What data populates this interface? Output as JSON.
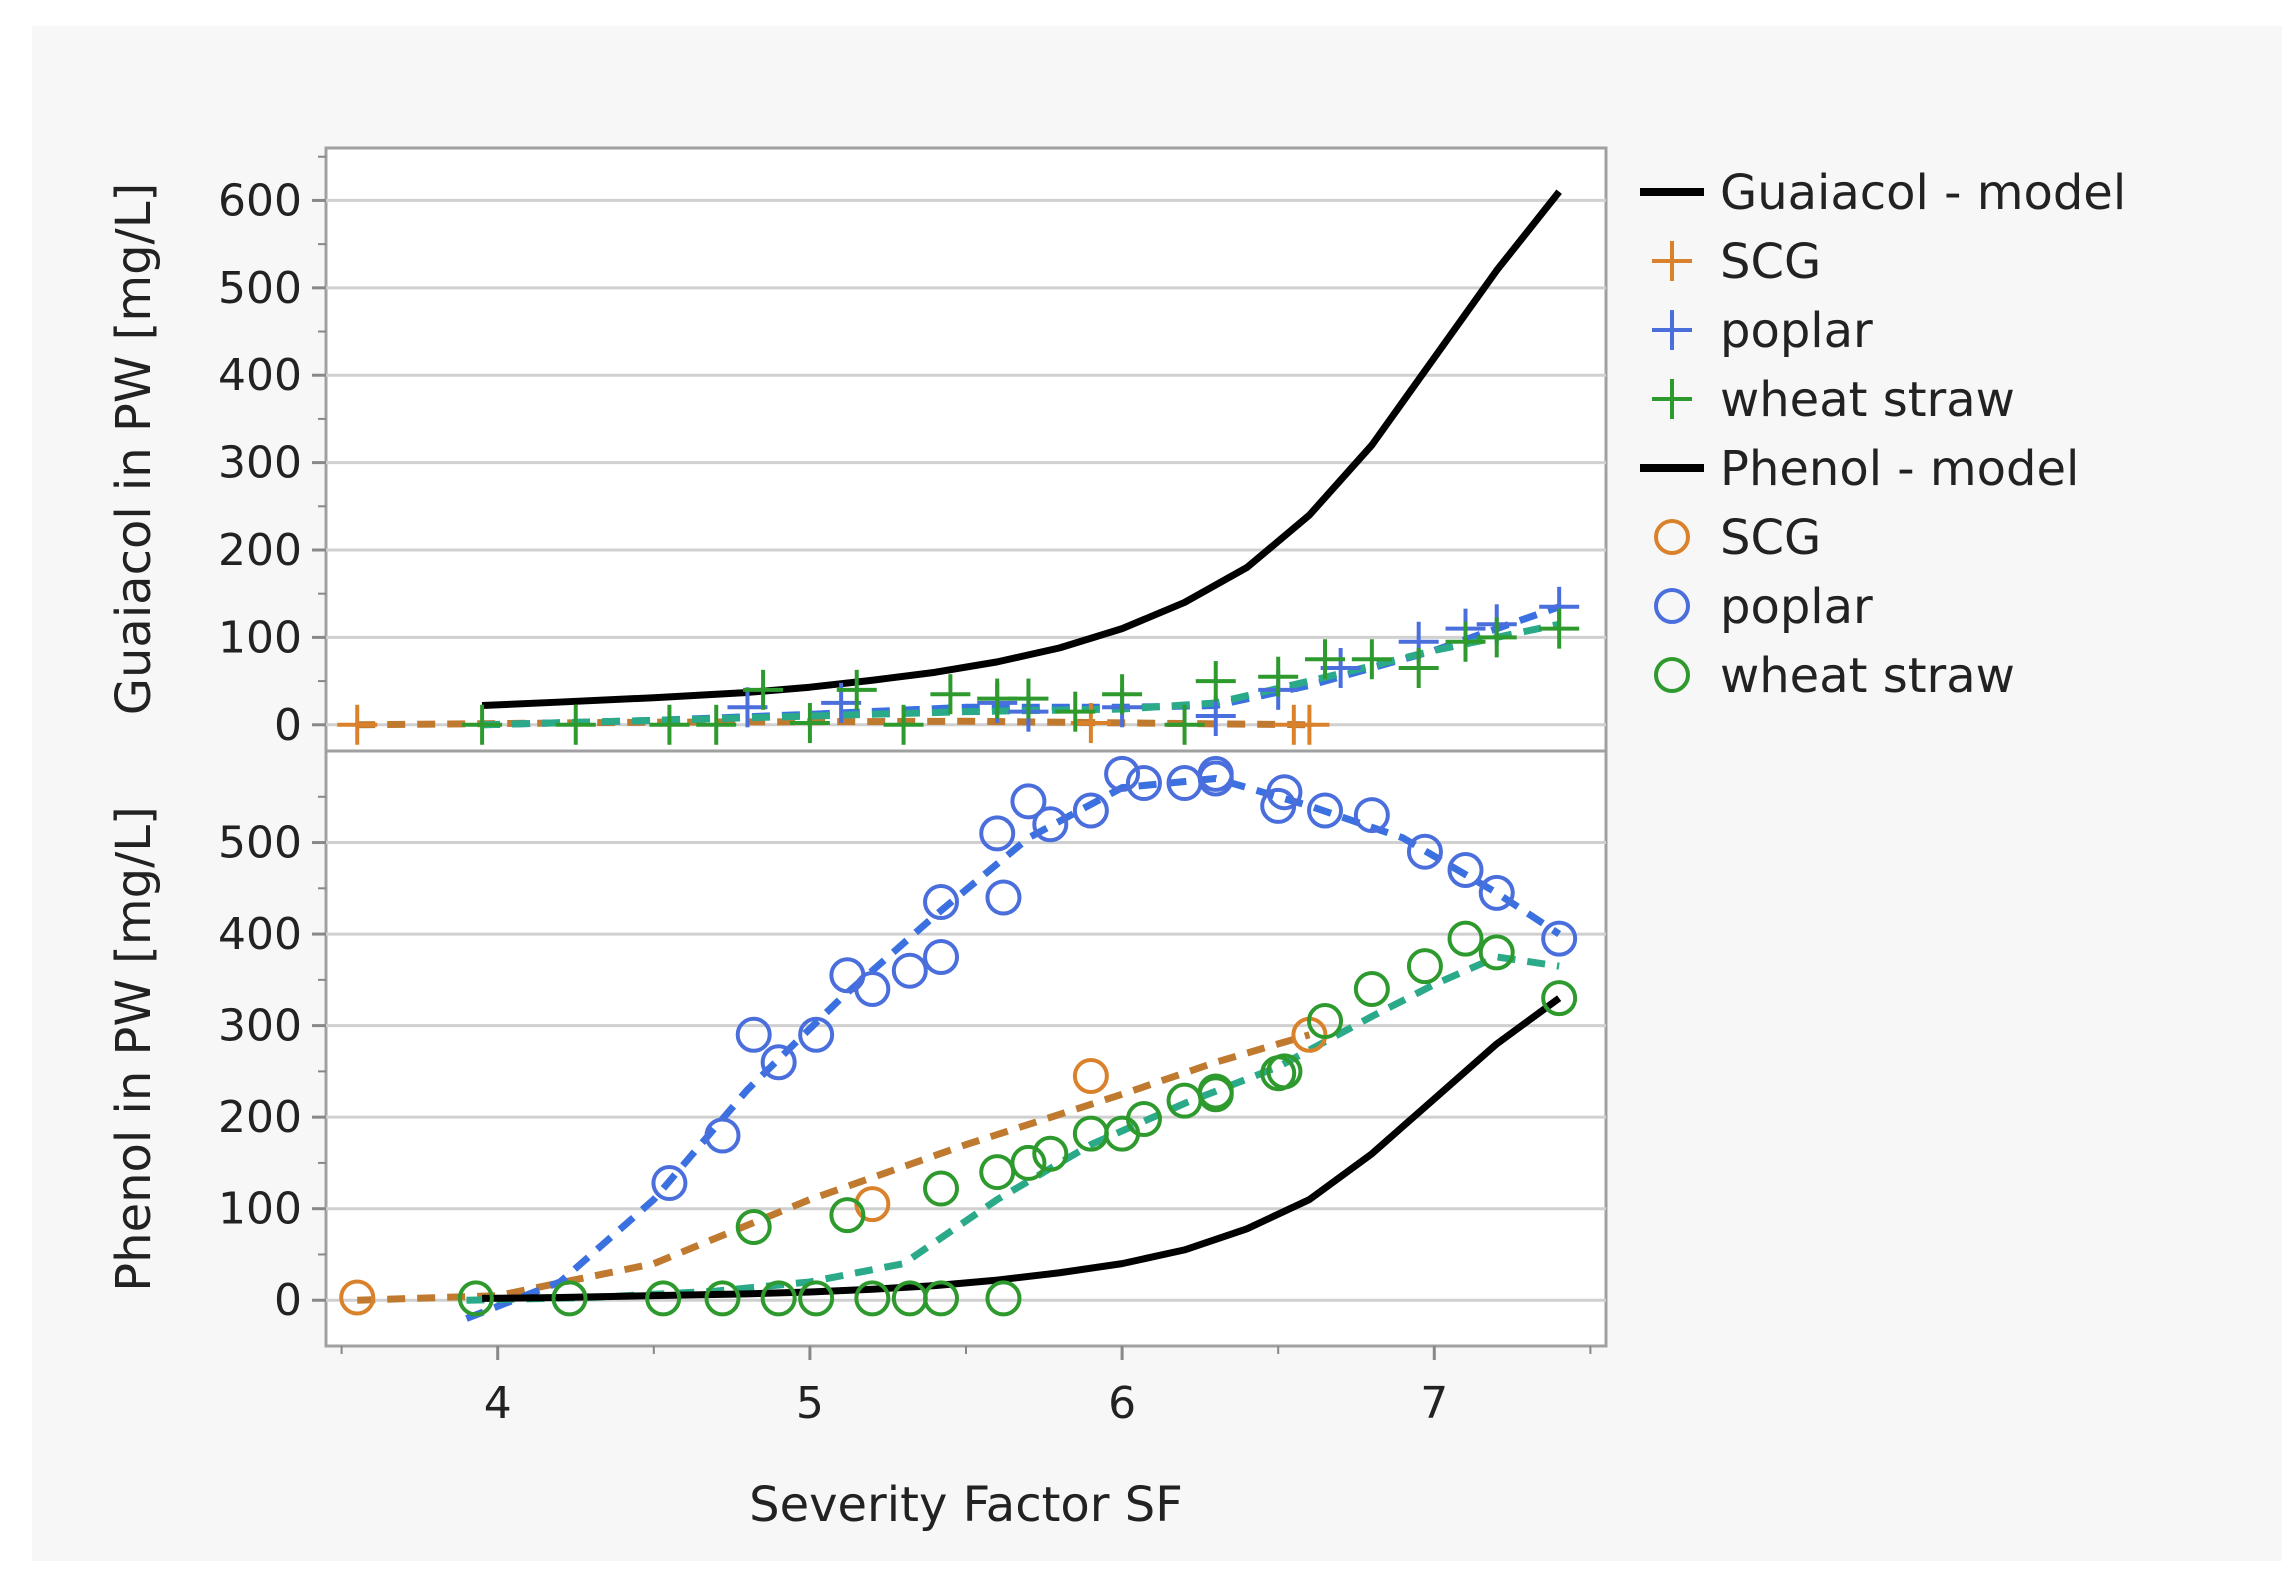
{
  "chart_data": [
    {
      "type": "line",
      "panel": "top",
      "ylabel": "Guaiacol in PW [mg/L]",
      "xlabel": "Severity Factor SF",
      "xlim": [
        3.45,
        7.55
      ],
      "ylim": [
        -30,
        660
      ],
      "x_ticks": [
        4,
        5,
        6,
        7
      ],
      "y_ticks": [
        0,
        100,
        200,
        300,
        400,
        500,
        600
      ],
      "grid": true,
      "series": [
        {
          "name": "Guaiacol - model",
          "style": "solid",
          "color": "#000000",
          "x": [
            3.95,
            4.2,
            4.5,
            4.8,
            5.0,
            5.2,
            5.4,
            5.6,
            5.8,
            6.0,
            6.2,
            6.4,
            6.6,
            6.8,
            7.0,
            7.2,
            7.4
          ],
          "y": [
            22,
            26,
            31,
            37,
            43,
            51,
            60,
            72,
            88,
            110,
            140,
            180,
            240,
            320,
            420,
            520,
            610
          ]
        },
        {
          "name": "SCG",
          "marker": "+",
          "color": "#d9822b",
          "x": [
            3.55,
            5.9,
            6.55,
            6.6
          ],
          "y": [
            0,
            2,
            0,
            0
          ],
          "fit_x": [
            3.55,
            4.5,
            5.5,
            6.6
          ],
          "fit_y": [
            0,
            3,
            4,
            0
          ]
        },
        {
          "name": "poplar",
          "marker": "+",
          "color": "#4a6fdc",
          "x": [
            4.8,
            5.1,
            5.6,
            5.7,
            6.0,
            6.3,
            6.5,
            6.7,
            6.95,
            7.1,
            7.2,
            7.4
          ],
          "y": [
            20,
            25,
            25,
            15,
            20,
            10,
            40,
            65,
            95,
            110,
            115,
            135
          ],
          "fit_x": [
            3.95,
            4.5,
            5.0,
            5.5,
            6.0,
            6.3,
            6.6,
            7.0,
            7.4
          ],
          "fit_y": [
            0,
            5,
            12,
            20,
            20,
            22,
            45,
            85,
            135
          ]
        },
        {
          "name": "wheat straw",
          "marker": "+",
          "color": "#2e9a2e",
          "x": [
            3.95,
            4.25,
            4.55,
            4.7,
            4.85,
            5.0,
            5.15,
            5.3,
            5.45,
            5.6,
            5.7,
            5.85,
            6.0,
            6.2,
            6.3,
            6.5,
            6.65,
            6.8,
            6.95,
            7.1,
            7.2,
            7.4
          ],
          "y": [
            0,
            0,
            0,
            0,
            40,
            2,
            40,
            0,
            35,
            30,
            30,
            15,
            35,
            0,
            50,
            55,
            75,
            75,
            65,
            95,
            100,
            110
          ],
          "fit_x": [
            3.95,
            4.5,
            5.0,
            5.5,
            6.0,
            6.3,
            6.6,
            7.0,
            7.4
          ],
          "fit_y": [
            0,
            5,
            10,
            15,
            18,
            25,
            50,
            85,
            115
          ]
        }
      ]
    },
    {
      "type": "line",
      "panel": "bottom",
      "ylabel": "Phenol in PW [mg/L]",
      "xlabel": "Severity Factor SF",
      "xlim": [
        3.45,
        7.55
      ],
      "ylim": [
        -50,
        600
      ],
      "x_ticks": [
        4,
        5,
        6,
        7
      ],
      "y_ticks": [
        0,
        100,
        200,
        300,
        400,
        500
      ],
      "grid": true,
      "series": [
        {
          "name": "Phenol - model",
          "style": "solid",
          "color": "#000000",
          "x": [
            3.95,
            4.2,
            4.5,
            4.8,
            5.0,
            5.2,
            5.4,
            5.6,
            5.8,
            6.0,
            6.2,
            6.4,
            6.6,
            6.8,
            7.0,
            7.2,
            7.4
          ],
          "y": [
            2,
            3,
            5,
            7,
            9,
            12,
            16,
            22,
            30,
            40,
            55,
            78,
            110,
            160,
            220,
            280,
            330
          ]
        },
        {
          "name": "SCG",
          "marker": "o",
          "color": "#d9822b",
          "x": [
            3.55,
            5.2,
            5.9,
            6.6
          ],
          "y": [
            3,
            105,
            245,
            290
          ],
          "fit_x": [
            3.55,
            4.0,
            4.5,
            5.0,
            5.5,
            6.0,
            6.3,
            6.6
          ],
          "fit_y": [
            0,
            5,
            40,
            110,
            170,
            225,
            260,
            290
          ]
        },
        {
          "name": "poplar",
          "marker": "o",
          "color": "#4a6fdc",
          "x": [
            4.55,
            4.72,
            4.82,
            4.9,
            5.02,
            5.12,
            5.2,
            5.32,
            5.42,
            5.42,
            5.6,
            5.62,
            5.7,
            5.77,
            5.9,
            6.0,
            6.07,
            6.2,
            6.3,
            6.3,
            6.5,
            6.52,
            6.65,
            6.8,
            6.97,
            7.1,
            7.2,
            7.4
          ],
          "y": [
            128,
            180,
            290,
            260,
            290,
            355,
            340,
            360,
            375,
            435,
            510,
            440,
            545,
            520,
            535,
            575,
            565,
            565,
            570,
            575,
            540,
            555,
            535,
            530,
            490,
            470,
            445,
            395
          ],
          "fit_x": [
            3.9,
            4.2,
            4.5,
            4.8,
            5.1,
            5.4,
            5.7,
            6.0,
            6.3,
            6.6,
            6.9,
            7.2,
            7.4
          ],
          "fit_y": [
            -20,
            20,
            110,
            230,
            330,
            420,
            505,
            560,
            570,
            540,
            505,
            445,
            400
          ]
        },
        {
          "name": "wheat straw",
          "marker": "o",
          "color": "#2e9a2e",
          "x": [
            3.93,
            4.23,
            4.53,
            4.72,
            4.82,
            4.9,
            5.02,
            5.12,
            5.2,
            5.32,
            5.42,
            5.42,
            5.6,
            5.62,
            5.7,
            5.77,
            5.9,
            6.0,
            6.07,
            6.2,
            6.3,
            6.3,
            6.5,
            6.52,
            6.65,
            6.8,
            6.97,
            7.1,
            7.2,
            7.4
          ],
          "y": [
            2,
            2,
            2,
            2,
            80,
            2,
            2,
            93,
            2,
            2,
            122,
            2,
            140,
            2,
            150,
            160,
            182,
            182,
            198,
            218,
            225,
            228,
            248,
            250,
            305,
            340,
            365,
            395,
            380,
            330
          ],
          "fit_x": [
            3.9,
            4.3,
            4.7,
            5.0,
            5.3,
            5.6,
            5.9,
            6.2,
            6.5,
            6.8,
            7.0,
            7.2,
            7.4
          ],
          "fit_y": [
            0,
            3,
            10,
            20,
            40,
            110,
            170,
            215,
            255,
            310,
            345,
            375,
            365
          ]
        }
      ]
    }
  ],
  "legend": {
    "placement": "right",
    "entries": [
      {
        "label": "Guaiacol - model",
        "kind": "line",
        "color": "#000000"
      },
      {
        "label": "SCG",
        "kind": "plus",
        "color": "#d9822b"
      },
      {
        "label": "poplar",
        "kind": "plus",
        "color": "#4a6fdc"
      },
      {
        "label": "wheat straw",
        "kind": "plus",
        "color": "#2e9a2e"
      },
      {
        "label": "Phenol - model",
        "kind": "line",
        "color": "#000000"
      },
      {
        "label": "SCG",
        "kind": "circle",
        "color": "#d9822b"
      },
      {
        "label": "poplar",
        "kind": "circle",
        "color": "#4a6fdc"
      },
      {
        "label": "wheat straw",
        "kind": "circle",
        "color": "#2e9a2e"
      }
    ]
  },
  "colors": {
    "grid": "#d0d0d0",
    "frame": "#a0a0a0",
    "fit_scg": "#c07a30",
    "fit_poplar": "#3a70e0",
    "fit_wheat": "#2aaa88"
  }
}
